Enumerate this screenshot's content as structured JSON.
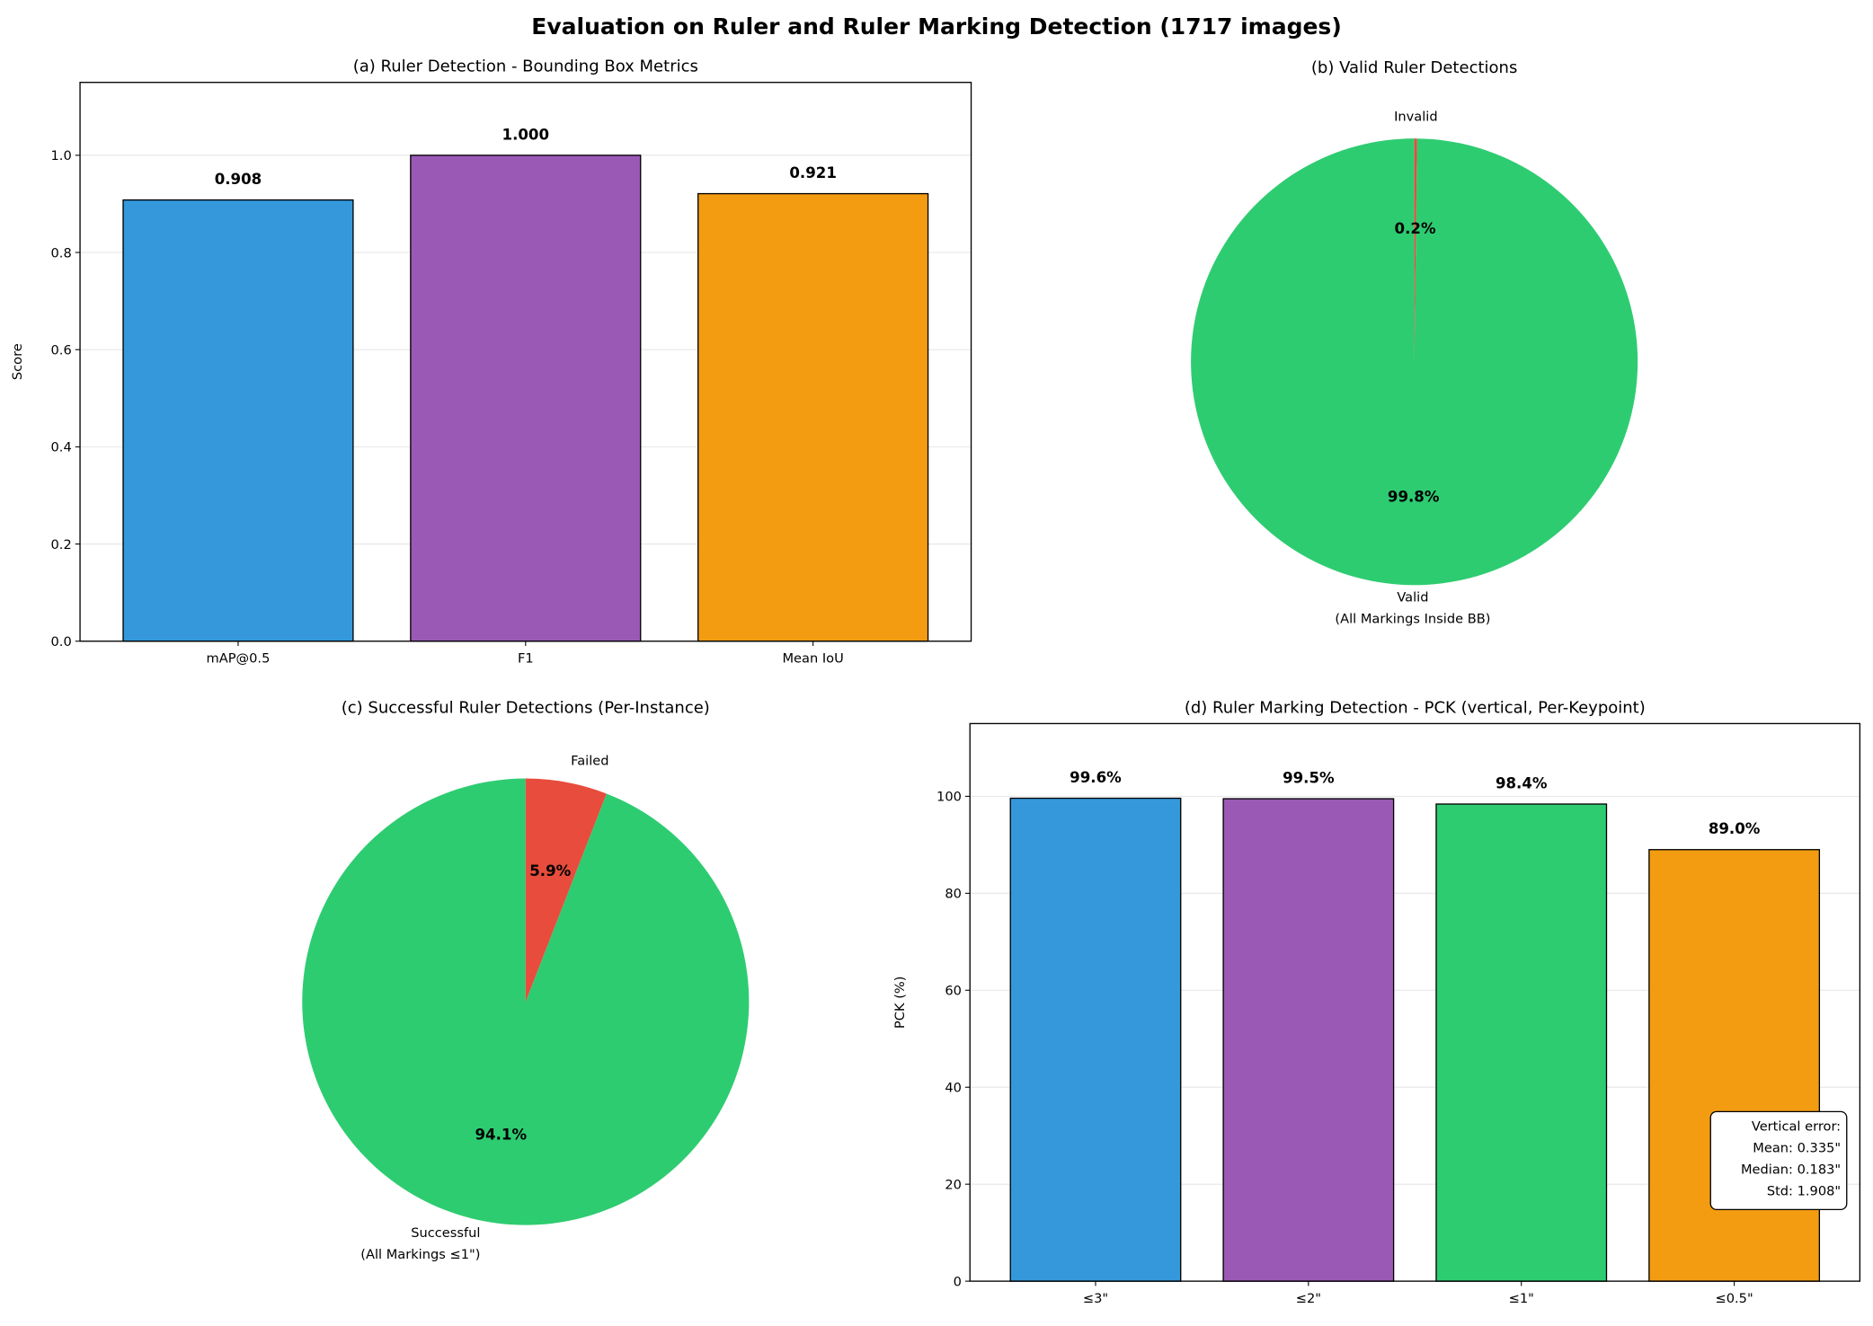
{
  "title": "Evaluation on Ruler and Ruler Marking Detection (1717 images)",
  "chart_data": [
    {
      "type": "bar",
      "title": "(a) Ruler Detection - Bounding Box Metrics",
      "categories": [
        "mAP@0.5",
        "F1",
        "Mean IoU"
      ],
      "values": [
        0.908,
        1.0,
        0.921
      ],
      "value_labels": [
        "0.908",
        "1.000",
        "0.921"
      ],
      "colors": [
        "#3498db",
        "#9b59b6",
        "#f39c12"
      ],
      "xlabel": "",
      "ylabel": "Score",
      "ylim": [
        0,
        1.15
      ],
      "yticks": [
        "0.0",
        "0.2",
        "0.4",
        "0.6",
        "0.8",
        "1.0"
      ],
      "grid": "y"
    },
    {
      "type": "pie",
      "title": "(b) Valid Ruler Detections",
      "labels": [
        "Valid\n(All Markings Inside BB)",
        "Invalid"
      ],
      "label_lines": [
        [
          "Valid",
          "(All Markings Inside BB)"
        ],
        [
          "Invalid"
        ]
      ],
      "values": [
        99.8,
        0.2
      ],
      "pct_labels": [
        "99.8%",
        "0.2%"
      ],
      "colors": [
        "#2ecc71",
        "#e74c3c"
      ],
      "startangle": 90
    },
    {
      "type": "pie",
      "title": "(c) Successful Ruler Detections (Per-Instance)",
      "labels": [
        "Successful\n(All Markings ≤1\")",
        "Failed"
      ],
      "label_lines": [
        [
          "Successful",
          "(All Markings ≤1\")"
        ],
        [
          "Failed"
        ]
      ],
      "values": [
        94.1,
        5.9
      ],
      "pct_labels": [
        "94.1%",
        "5.9%"
      ],
      "colors": [
        "#2ecc71",
        "#e74c3c"
      ],
      "startangle": 90
    },
    {
      "type": "bar",
      "title": "(d) Ruler Marking Detection - PCK (vertical, Per-Keypoint)",
      "categories": [
        "≤3\"",
        "≤2\"",
        "≤1\"",
        "≤0.5\""
      ],
      "values": [
        99.6,
        99.5,
        98.4,
        89.0
      ],
      "value_labels": [
        "99.6%",
        "99.5%",
        "98.4%",
        "89.0%"
      ],
      "colors": [
        "#3498db",
        "#9b59b6",
        "#2ecc71",
        "#f39c12"
      ],
      "xlabel": "",
      "ylabel": "PCK (%)",
      "ylim": [
        0,
        115
      ],
      "yticks": [
        "0",
        "20",
        "40",
        "60",
        "80",
        "100"
      ],
      "grid": "y",
      "annotation": [
        "Vertical error:",
        "Mean: 0.335\"",
        "Median: 0.183\"",
        "Std: 1.908\""
      ]
    }
  ]
}
